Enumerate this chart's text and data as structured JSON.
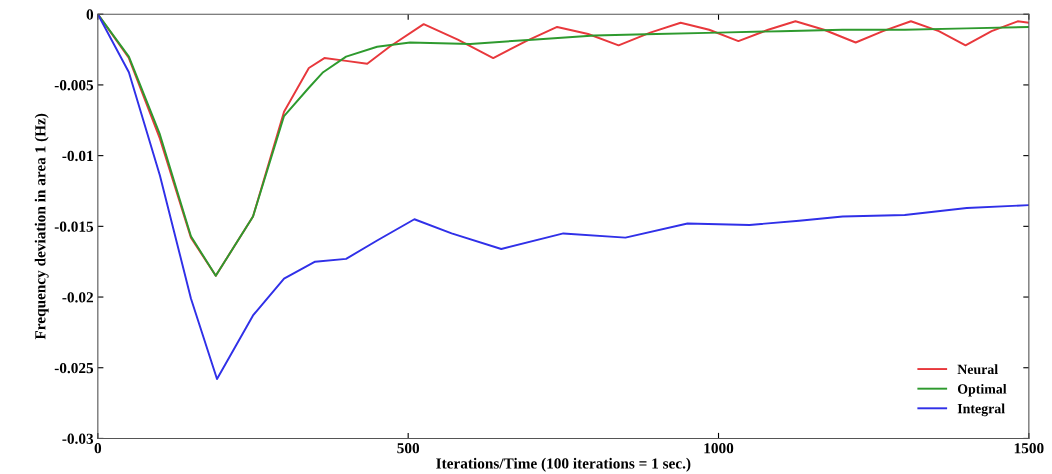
{
  "chart_data": {
    "type": "line",
    "xlabel": "Iterations/Time (100 iterations = 1 sec.)",
    "ylabel": "Frequency deviation in area 1 (Hz)",
    "xlim": [
      0,
      1500
    ],
    "xticks": [
      0,
      500,
      1000,
      1500
    ],
    "ylim": [
      -0.03,
      0
    ],
    "yticks": [
      {
        "value": -0.03,
        "label": "-0.03"
      },
      {
        "value": -0.025,
        "label": "-0.025"
      },
      {
        "value": -0.02,
        "label": "-0.02"
      },
      {
        "value": -0.015,
        "label": "-0.015"
      },
      {
        "value": -0.01,
        "label": "-0.01"
      },
      {
        "value": -0.005,
        "label": "-0.005"
      },
      {
        "value": 0,
        "label": "0"
      }
    ],
    "grid": false,
    "legend": "bottom right",
    "line_style": "solid",
    "marker": "none",
    "series": [
      {
        "name": "Neural",
        "color": "#e8383c",
        "x": [
          0,
          50,
          100,
          150,
          190,
          250,
          300,
          340,
          365,
          400,
          434,
          470,
          525,
          580,
          637,
          690,
          740,
          790,
          839,
          890,
          939,
          985,
          1032,
          1080,
          1124,
          1170,
          1221,
          1265,
          1310,
          1355,
          1398,
          1440,
          1482,
          1500
        ],
        "values": [
          0,
          -0.0031,
          -0.0088,
          -0.0158,
          -0.0185,
          -0.0143,
          -0.0069,
          -0.0038,
          -0.0031,
          -0.0033,
          -0.0035,
          -0.0023,
          -0.0007,
          -0.0018,
          -0.0031,
          -0.0019,
          -0.0009,
          -0.0014,
          -0.0022,
          -0.0013,
          -0.0006,
          -0.0011,
          -0.0019,
          -0.0011,
          -0.0005,
          -0.0011,
          -0.002,
          -0.0012,
          -0.0005,
          -0.0012,
          -0.0022,
          -0.0012,
          -0.0005,
          -0.0006
        ]
      },
      {
        "name": "Optimal",
        "color": "#2e9a2e",
        "x": [
          0,
          50,
          100,
          150,
          190,
          250,
          300,
          340,
          363,
          400,
          450,
          503,
          600,
          700,
          800,
          900,
          1000,
          1100,
          1200,
          1300,
          1400,
          1500
        ],
        "values": [
          0,
          -0.003,
          -0.0085,
          -0.0157,
          -0.0185,
          -0.0143,
          -0.0072,
          -0.0052,
          -0.0041,
          -0.003,
          -0.0023,
          -0.002,
          -0.0021,
          -0.0018,
          -0.0015,
          -0.0014,
          -0.0013,
          -0.0012,
          -0.0011,
          -0.0011,
          -0.001,
          -0.0009
        ]
      },
      {
        "name": "Integral",
        "color": "#3030e8",
        "x": [
          0,
          50,
          100,
          150,
          192,
          250,
          300,
          350,
          400,
          450,
          510,
          570,
          650,
          750,
          850,
          950,
          1050,
          1130,
          1200,
          1300,
          1400,
          1500
        ],
        "values": [
          0,
          -0.0041,
          -0.0114,
          -0.0201,
          -0.0258,
          -0.0213,
          -0.0187,
          -0.0175,
          -0.0173,
          -0.016,
          -0.0145,
          -0.0155,
          -0.0166,
          -0.0155,
          -0.0158,
          -0.0148,
          -0.0149,
          -0.0146,
          -0.0143,
          -0.0142,
          -0.0137,
          -0.0135
        ]
      }
    ]
  }
}
